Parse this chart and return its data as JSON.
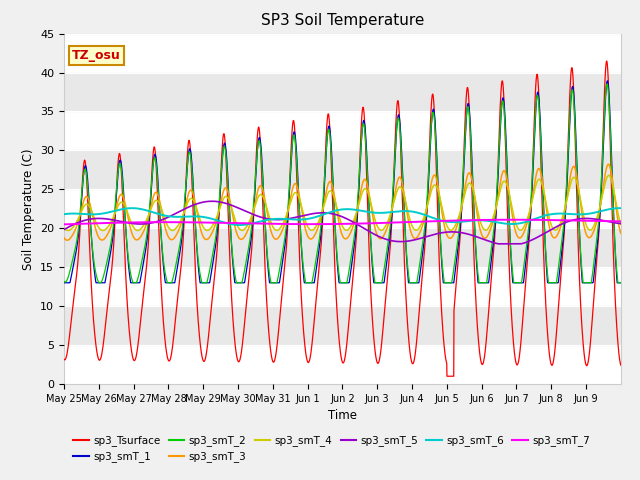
{
  "title": "SP3 Soil Temperature",
  "xlabel": "Time",
  "ylabel": "Soil Temperature (C)",
  "ylim": [
    0,
    45
  ],
  "yticks": [
    0,
    5,
    10,
    15,
    20,
    25,
    30,
    35,
    40,
    45
  ],
  "background_color": "#f0f0f0",
  "plot_bg_color": "#ffffff",
  "strip_color": "#e8e8e8",
  "tz_label": "TZ_osu",
  "series_colors": {
    "sp3_Tsurface": "#ff0000",
    "sp3_smT_1": "#0000cc",
    "sp3_smT_2": "#00cc00",
    "sp3_smT_3": "#ff9900",
    "sp3_smT_4": "#cccc00",
    "sp3_smT_5": "#9900cc",
    "sp3_smT_6": "#00cccc",
    "sp3_smT_7": "#ff00ff"
  },
  "x_tick_labels": [
    "May 25",
    "May 26",
    "May 27",
    "May 28",
    "May 29",
    "May 30",
    "May 31",
    "Jun 1",
    "Jun 2",
    "Jun 3",
    "Jun 4",
    "Jun 5",
    "Jun 6",
    "Jun 7",
    "Jun 8",
    "Jun 9"
  ],
  "n_days": 16,
  "pts_per_day": 144
}
